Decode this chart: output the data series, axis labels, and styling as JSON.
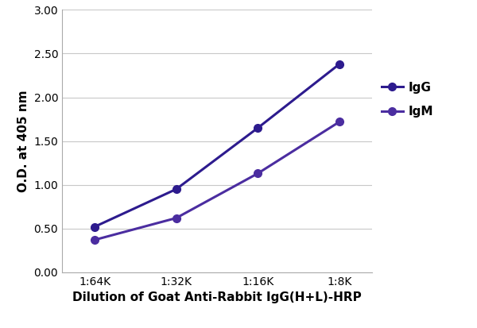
{
  "x_labels": [
    "1:64K",
    "1:32K",
    "1:16K",
    "1:8K"
  ],
  "x_positions": [
    0,
    1,
    2,
    3
  ],
  "IgG_values": [
    0.52,
    0.95,
    1.65,
    2.38
  ],
  "IgM_values": [
    0.37,
    0.62,
    1.13,
    1.72
  ],
  "IgG_color": "#2d1b8e",
  "IgM_color": "#4b2da0",
  "marker_IgG": "o",
  "marker_IgM": "o",
  "marker_size": 7,
  "line_width": 2.2,
  "ylabel": "O.D. at 405 nm",
  "xlabel": "Dilution of Goat Anti-Rabbit IgG(H+L)-HRP",
  "ylim": [
    0.0,
    3.0
  ],
  "yticks": [
    0.0,
    0.5,
    1.0,
    1.5,
    2.0,
    2.5,
    3.0
  ],
  "ytick_labels": [
    "0.00",
    "0.50",
    "1.00",
    "1.50",
    "2.00",
    "2.50",
    "3.00"
  ],
  "legend_labels": [
    "IgG",
    "IgM"
  ],
  "background_color": "#ffffff",
  "grid_color": "#c8c8c8",
  "xlabel_fontsize": 11,
  "ylabel_fontsize": 11,
  "tick_fontsize": 10,
  "legend_fontsize": 11,
  "legend_text_color": "#000000"
}
